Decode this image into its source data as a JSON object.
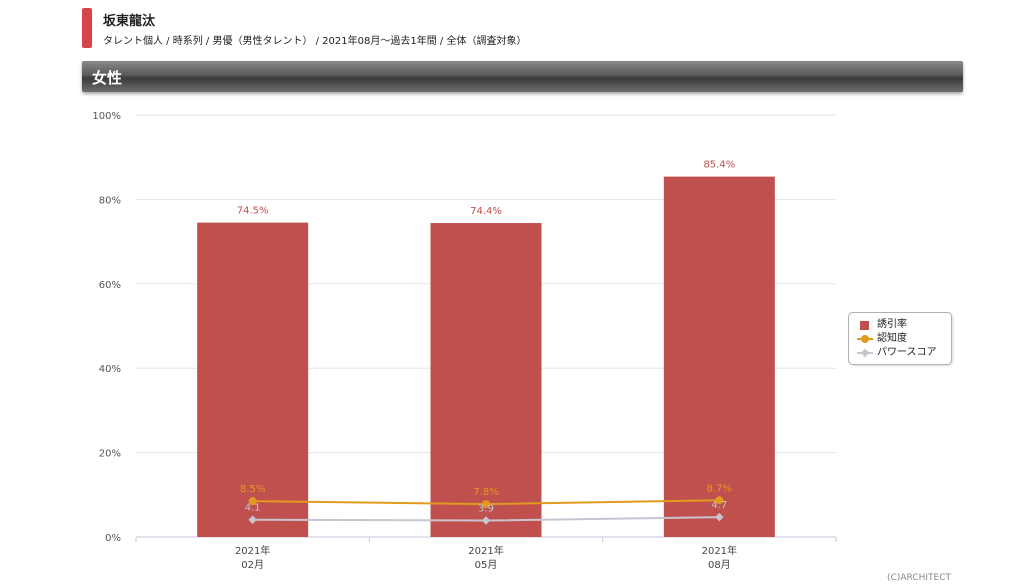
{
  "header": {
    "talent_name": "坂東龍汰",
    "subtitle": "タレント個人 / 時系列 / 男優（男性タレント） / 2021年08月〜過去1年間 / 全体（調査対象）"
  },
  "section": {
    "title": "女性"
  },
  "legend": {
    "items": [
      {
        "label": "誘引率",
        "color": "#c0504d",
        "marker": "square"
      },
      {
        "label": "認知度",
        "color": "#e09a1e",
        "marker": "circle"
      },
      {
        "label": "パワースコア",
        "color": "#c8c4d0",
        "marker": "diamond"
      }
    ]
  },
  "copyright": "(C)ARCHITECT",
  "chart_data": {
    "type": "bar",
    "categories": [
      [
        "2021年",
        "02月"
      ],
      [
        "2021年",
        "05月"
      ],
      [
        "2021年",
        "08月"
      ]
    ],
    "ylim": [
      0,
      100
    ],
    "yticks": [
      "0%",
      "20%",
      "40%",
      "60%",
      "80%",
      "100%"
    ],
    "grid": true,
    "legend_position": "right",
    "series": [
      {
        "name": "誘引率",
        "type": "bar",
        "color": "#c0504d",
        "values": [
          74.5,
          74.4,
          85.4
        ],
        "labels": [
          "74.5%",
          "74.4%",
          "85.4%"
        ]
      },
      {
        "name": "認知度",
        "type": "line",
        "color": "#e09a1e",
        "values": [
          8.5,
          7.8,
          8.7
        ],
        "labels": [
          "8.5%",
          "7.8%",
          "8.7%"
        ]
      },
      {
        "name": "パワースコア",
        "type": "line",
        "color": "#c8c4d0",
        "values": [
          4.1,
          3.9,
          4.7
        ],
        "labels": [
          "4.1",
          "3.9",
          "4.7"
        ]
      }
    ]
  }
}
